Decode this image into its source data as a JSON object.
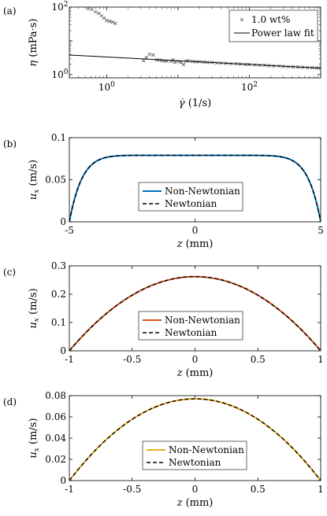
{
  "panels": [
    {
      "label": "(a)",
      "chart_data": {
        "type": "scatter",
        "xscale": "log",
        "yscale": "log",
        "xlim": [
          0.3,
          1000
        ],
        "ylim": [
          0.8,
          100
        ],
        "xticks": [
          1,
          10,
          100
        ],
        "xtick_labels": [
          "10^0",
          "",
          "10^2"
        ],
        "yticks": [
          1,
          10,
          100
        ],
        "ytick_labels": [
          "10^0",
          "",
          "10^2"
        ],
        "xlabel": "γ̇ (1/s)",
        "ylabel": "η (mPa·s)",
        "legend_position": "top-right",
        "series": [
          {
            "name": "1.0 wt%",
            "kind": "marker",
            "points": [
              [
                0.55,
                90
              ],
              [
                0.62,
                85
              ],
              [
                0.7,
                72
              ],
              [
                0.78,
                65
              ],
              [
                0.85,
                55
              ],
              [
                0.92,
                47
              ],
              [
                1.0,
                40
              ],
              [
                1.1,
                38
              ],
              [
                1.2,
                36
              ],
              [
                1.32,
                33
              ],
              [
                3.3,
                2.6
              ],
              [
                3.6,
                3.2
              ],
              [
                4.0,
                4.0
              ],
              [
                4.5,
                3.8
              ],
              [
                5.0,
                2.7
              ],
              [
                5.5,
                2.7
              ],
              [
                6.0,
                2.6
              ],
              [
                6.5,
                2.5
              ],
              [
                7.0,
                2.5
              ],
              [
                8.0,
                2.5
              ],
              [
                8.5,
                2.7
              ],
              [
                9.0,
                2.3
              ],
              [
                10,
                2.45
              ],
              [
                11,
                2.3
              ],
              [
                12,
                2.0
              ],
              [
                13,
                2.5
              ],
              [
                14,
                2.6
              ],
              [
                16,
                2.45
              ],
              [
                18,
                2.4
              ],
              [
                20,
                2.4
              ],
              [
                23,
                2.35
              ],
              [
                26,
                2.3
              ],
              [
                30,
                2.3
              ],
              [
                35,
                2.2
              ],
              [
                40,
                2.2
              ],
              [
                47,
                2.15
              ],
              [
                55,
                2.1
              ],
              [
                65,
                2.1
              ],
              [
                75,
                2.05
              ],
              [
                88,
                2.0
              ],
              [
                100,
                2.0
              ],
              [
                120,
                1.95
              ],
              [
                140,
                1.9
              ],
              [
                165,
                1.9
              ],
              [
                190,
                1.85
              ],
              [
                220,
                1.8
              ],
              [
                260,
                1.8
              ],
              [
                300,
                1.75
              ],
              [
                350,
                1.72
              ],
              [
                410,
                1.7
              ],
              [
                480,
                1.68
              ],
              [
                560,
                1.65
              ],
              [
                650,
                1.62
              ],
              [
                760,
                1.6
              ],
              [
                880,
                1.58
              ],
              [
                1000,
                1.55
              ]
            ]
          },
          {
            "name": "Power law fit",
            "kind": "line",
            "x": [
              0.3,
              1000
            ],
            "y": [
              3.8,
              1.55
            ]
          }
        ]
      }
    },
    {
      "label": "(b)",
      "chart_data": {
        "type": "line",
        "xlim": [
          -5,
          5
        ],
        "ylim": [
          0,
          0.1
        ],
        "xticks": [
          -5,
          0,
          5
        ],
        "xtick_labels": [
          "-5",
          "0",
          "5"
        ],
        "yticks": [
          0,
          0.05,
          0.1
        ],
        "ytick_labels": [
          "0",
          "0.05",
          "0.1"
        ],
        "xlabel": "z (mm)",
        "ylabel": "u_x (m/s)",
        "legend_position": "bottom-center",
        "profile": {
          "shape": "plug",
          "umax": 0.079,
          "halfwidth": 5,
          "exponent": 10
        },
        "series": [
          {
            "name": "Non-Newtonian",
            "color": "#0072BD",
            "style": "solid"
          },
          {
            "name": "Newtonian",
            "color": "#000000",
            "style": "dashed"
          }
        ]
      }
    },
    {
      "label": "(c)",
      "chart_data": {
        "type": "line",
        "xlim": [
          -1,
          1
        ],
        "ylim": [
          0,
          0.3
        ],
        "xticks": [
          -1,
          -0.5,
          0,
          0.5,
          1
        ],
        "xtick_labels": [
          "-1",
          "-0.5",
          "0",
          "0.5",
          "1"
        ],
        "yticks": [
          0,
          0.1,
          0.2,
          0.3
        ],
        "ytick_labels": [
          "0",
          "0.1",
          "0.2",
          "0.3"
        ],
        "xlabel": "z (mm)",
        "ylabel": "u_x (m/s)",
        "legend_position": "bottom-center",
        "profile": {
          "shape": "parabola",
          "umax": 0.262,
          "halfwidth": 1
        },
        "series": [
          {
            "name": "Non-Newtonian",
            "color": "#D95319",
            "style": "solid"
          },
          {
            "name": "Newtonian",
            "color": "#000000",
            "style": "dashed"
          }
        ]
      }
    },
    {
      "label": "(d)",
      "chart_data": {
        "type": "line",
        "xlim": [
          -1,
          1
        ],
        "ylim": [
          0,
          0.08
        ],
        "xticks": [
          -1,
          -0.5,
          0,
          0.5,
          1
        ],
        "xtick_labels": [
          "-1",
          "-0.5",
          "0",
          "0.5",
          "1"
        ],
        "yticks": [
          0,
          0.02,
          0.04,
          0.06,
          0.08
        ],
        "ytick_labels": [
          "0",
          "0.02",
          "0.04",
          "0.06",
          "0.08"
        ],
        "xlabel": "z (mm)",
        "ylabel": "u_x (m/s)",
        "legend_position": "bottom-center",
        "profile": {
          "shape": "parabola",
          "umax": 0.077,
          "halfwidth": 1
        },
        "series": [
          {
            "name": "Non-Newtonian",
            "color": "#EDB120",
            "style": "solid"
          },
          {
            "name": "Newtonian",
            "color": "#000000",
            "style": "dashed"
          }
        ]
      }
    }
  ]
}
